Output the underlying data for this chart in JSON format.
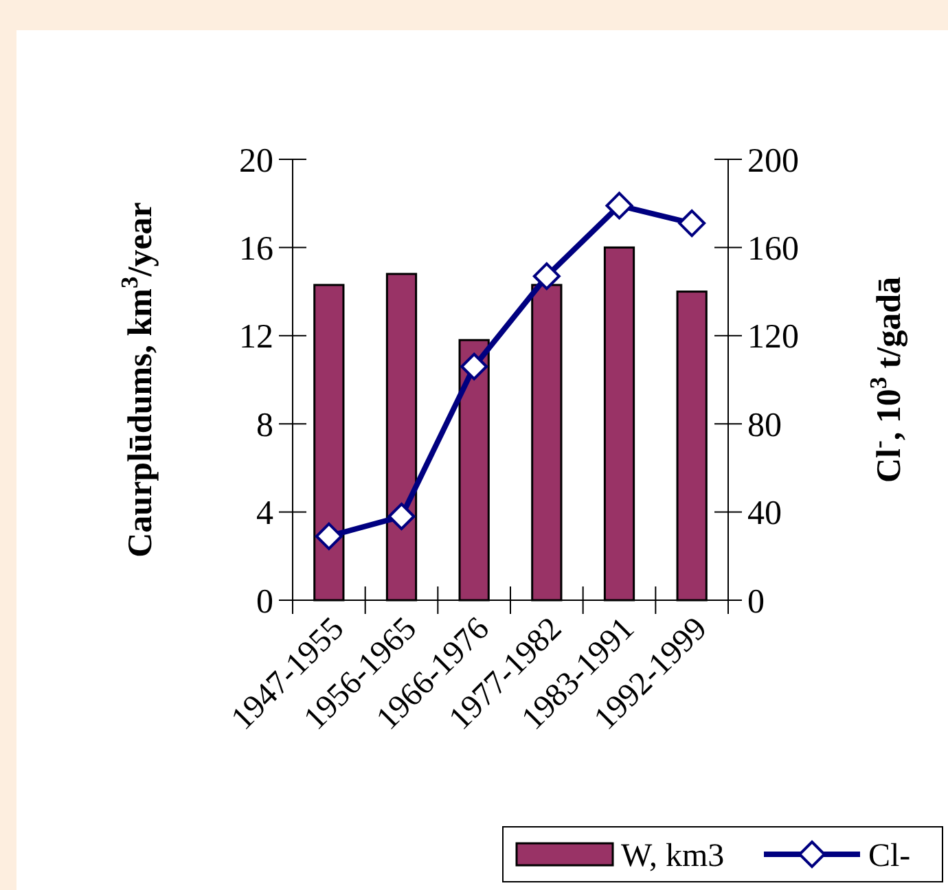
{
  "chart_data": {
    "type": "bar",
    "categories": [
      "1947-1955",
      "1956-1965",
      "1966-1976",
      "1977-1982",
      "1983-1991",
      "1992-1999"
    ],
    "ylabel": "Caurplūdums, km$^{3}$/year",
    "y2label": "Cl$^{-}$, 10$^{3}$ t/gadā",
    "series": [
      {
        "name": "W, km3",
        "color": "#993366",
        "values": [
          14.3,
          14.8,
          11.8,
          14.3,
          16.0,
          14.0
        ]
      },
      {
        "name": "Cl-",
        "type": "line",
        "axis": "y2",
        "color": "#000080",
        "marker": "diamond",
        "values": [
          29,
          38,
          106,
          147,
          179,
          171
        ]
      }
    ],
    "ylim": [
      0,
      20
    ],
    "yticks": [
      0,
      4,
      8,
      12,
      16,
      20
    ],
    "y2lim": [
      0,
      200
    ],
    "y2ticks": [
      0,
      40,
      80,
      120,
      160,
      200
    ],
    "grid": false,
    "legend": "bottom right"
  }
}
